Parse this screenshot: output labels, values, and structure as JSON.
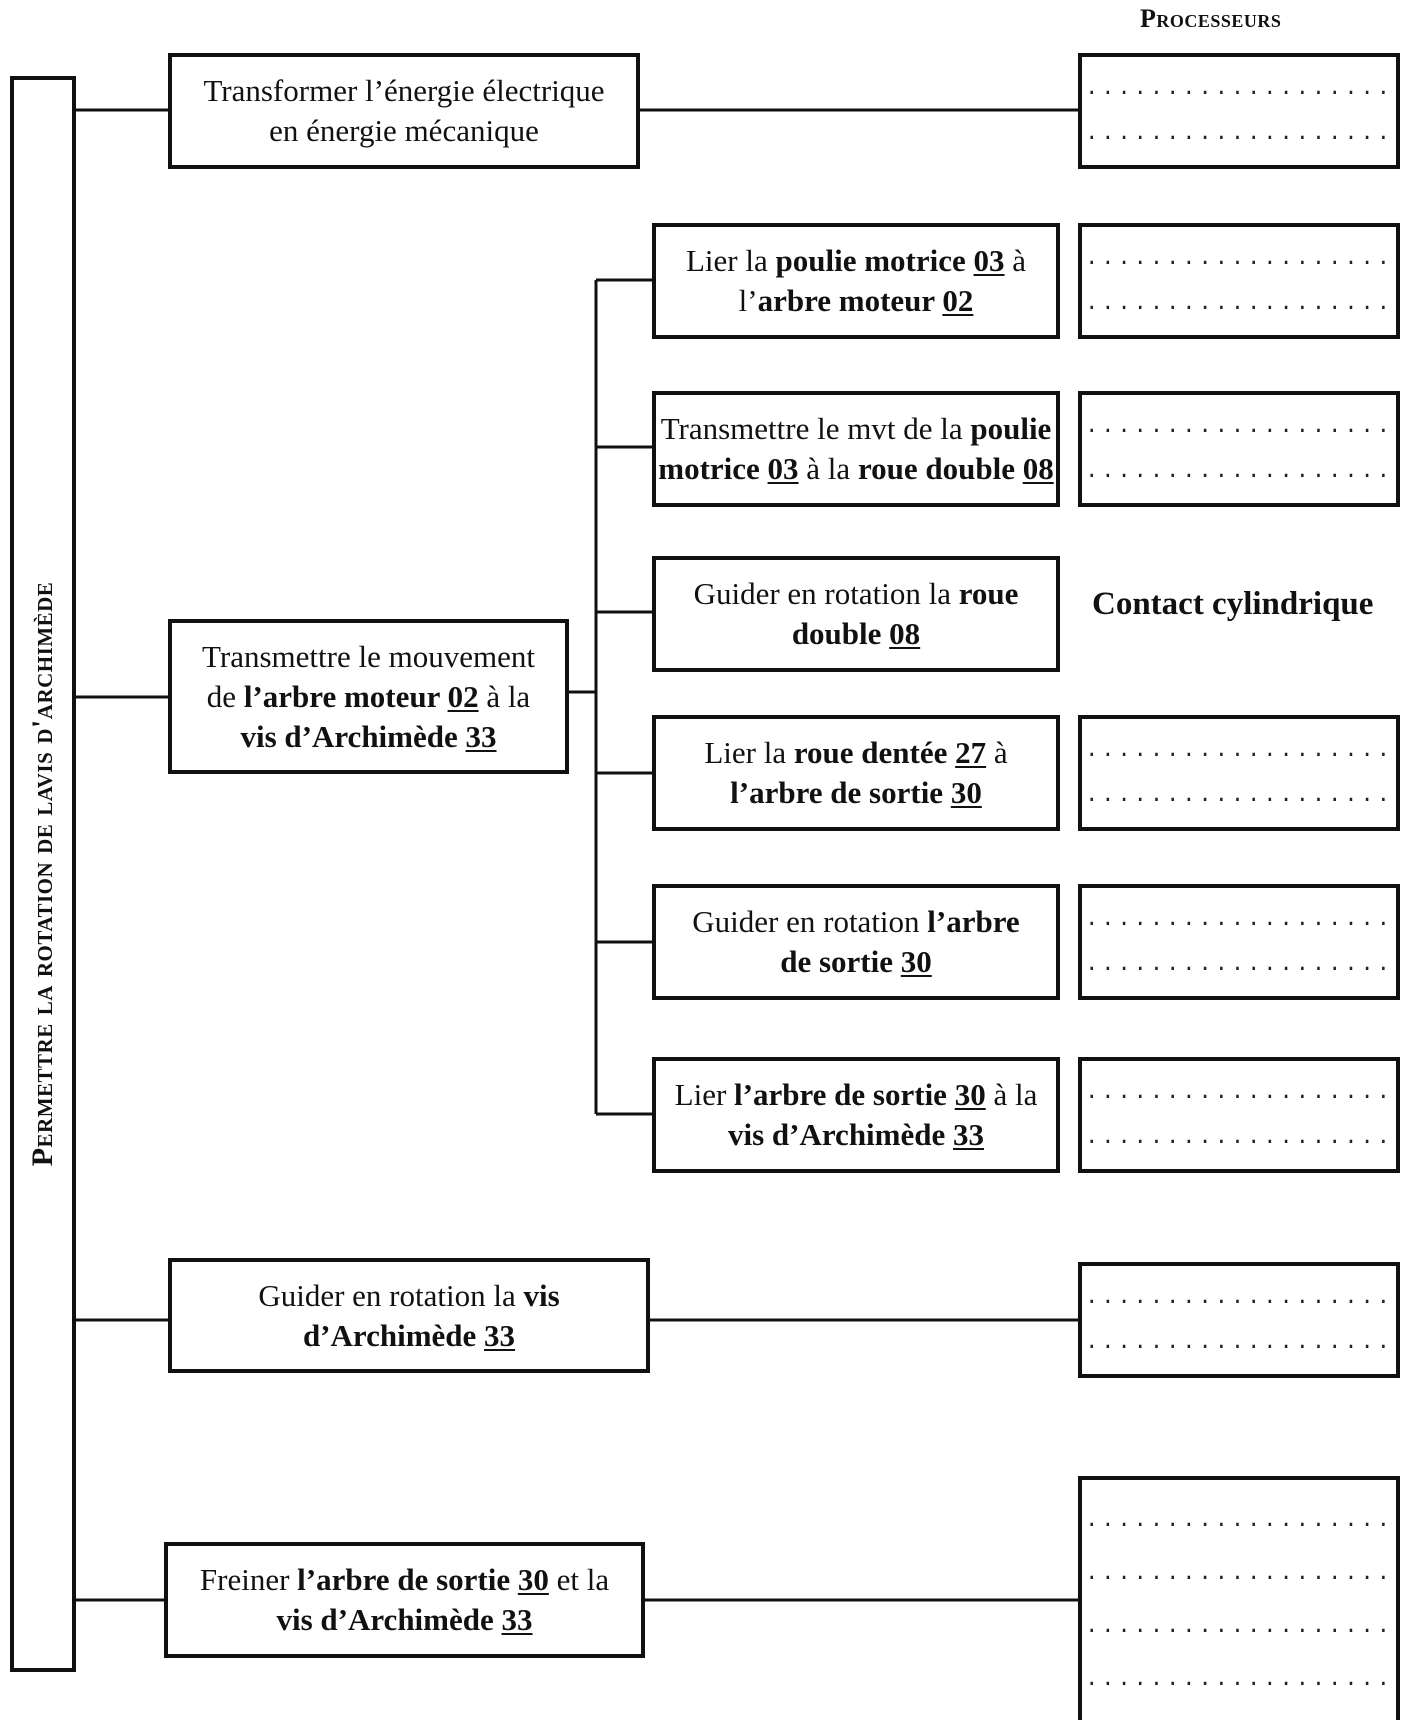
{
  "header": {
    "processeurs": "Processeurs"
  },
  "main_function": "Permettre la rotation de lavis d'archimède",
  "contact_note": "Contact cylindrique",
  "dotted_line": "...................",
  "functions": {
    "f1": {
      "lines": [
        [
          {
            "t": "Transformer l’énergie  électrique"
          }
        ],
        [
          {
            "t": "en énergie mécanique"
          }
        ]
      ]
    },
    "f2": {
      "lines": [
        [
          {
            "t": "Transmettre le mouvement"
          }
        ],
        [
          {
            "t": "de "
          },
          {
            "t": "l’arbre moteur ",
            "b": true
          },
          {
            "t": "02",
            "b": true,
            "u": true
          },
          {
            "t": " à la"
          }
        ],
        [
          {
            "t": "vis d’Archimède ",
            "b": true
          },
          {
            "t": "33",
            "b": true,
            "u": true
          }
        ]
      ]
    },
    "f3": {
      "lines": [
        [
          {
            "t": "Guider en rotation la "
          },
          {
            "t": "vis",
            "b": true
          }
        ],
        [
          {
            "t": "d’Archimède ",
            "b": true
          },
          {
            "t": "33",
            "b": true,
            "u": true
          }
        ]
      ]
    },
    "f4": {
      "lines": [
        [
          {
            "t": "Freiner "
          },
          {
            "t": "l’arbre de sortie ",
            "b": true
          },
          {
            "t": "30",
            "b": true,
            "u": true
          },
          {
            "t": " et la"
          }
        ],
        [
          {
            "t": "vis d’Archimède ",
            "b": true
          },
          {
            "t": "33",
            "b": true,
            "u": true
          }
        ]
      ]
    }
  },
  "subfunctions": {
    "s1": {
      "lines": [
        [
          {
            "t": "Lier la "
          },
          {
            "t": "poulie motrice ",
            "b": true
          },
          {
            "t": "03",
            "b": true,
            "u": true
          },
          {
            "t": " à"
          }
        ],
        [
          {
            "t": "l’"
          },
          {
            "t": "arbre  moteur ",
            "b": true
          },
          {
            "t": "02",
            "b": true,
            "u": true
          }
        ]
      ]
    },
    "s2": {
      "lines": [
        [
          {
            "t": "Transmettre le mvt de la "
          },
          {
            "t": "poulie",
            "b": true
          }
        ],
        [
          {
            "t": "motrice ",
            "b": true
          },
          {
            "t": "03",
            "b": true,
            "u": true
          },
          {
            "t": " à la "
          },
          {
            "t": "roue double ",
            "b": true
          },
          {
            "t": "08",
            "b": true,
            "u": true
          }
        ]
      ]
    },
    "s3": {
      "lines": [
        [
          {
            "t": "Guider en rotation la "
          },
          {
            "t": "roue",
            "b": true
          }
        ],
        [
          {
            "t": "double ",
            "b": true
          },
          {
            "t": "08",
            "b": true,
            "u": true
          }
        ]
      ]
    },
    "s4": {
      "lines": [
        [
          {
            "t": "Lier la "
          },
          {
            "t": "roue dentée ",
            "b": true
          },
          {
            "t": "27",
            "b": true,
            "u": true
          },
          {
            "t": " à"
          }
        ],
        [
          {
            "t": "l’arbre de sortie ",
            "b": true
          },
          {
            "t": "30",
            "b": true,
            "u": true
          }
        ]
      ]
    },
    "s5": {
      "lines": [
        [
          {
            "t": "Guider en rotation "
          },
          {
            "t": "l’arbre",
            "b": true
          }
        ],
        [
          {
            "t": "de sortie ",
            "b": true
          },
          {
            "t": "30",
            "b": true,
            "u": true
          }
        ]
      ]
    },
    "s6": {
      "lines": [
        [
          {
            "t": "Lier "
          },
          {
            "t": "l’arbre de sortie ",
            "b": true
          },
          {
            "t": "30",
            "b": true,
            "u": true
          },
          {
            "t": " à la"
          }
        ],
        [
          {
            "t": "vis d’Archimède ",
            "b": true
          },
          {
            "t": "33",
            "b": true,
            "u": true
          }
        ]
      ]
    }
  }
}
